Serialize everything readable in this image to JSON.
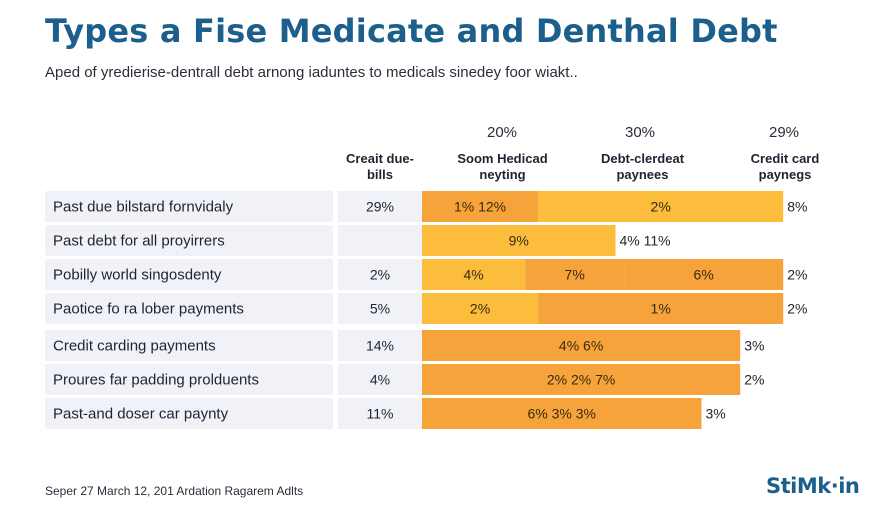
{
  "title": "Types a Fise Medicate and Denthal Debt",
  "subtitle": "Aped of yredierise-dentrall debt arnong iaduntes to medicals sinedey foor wiakt..",
  "footer": "Seper 27 March 12, 201 Ardation Ragarem Adlts",
  "brand": "StiMk·in",
  "colors": {
    "title": "#1c5f8d",
    "orange": "#f5a33a",
    "yellow": "#fbbd3b",
    "row_bg": "#f1f2f8"
  },
  "chart_data": {
    "type": "bar",
    "stacked": true,
    "orientation": "horizontal",
    "header_percents": [
      "20%",
      "30%",
      "29%"
    ],
    "columns": [
      "Creait due-\nbills",
      "Soom Hedicad\nneyting",
      "Debt-clerdeat\npaynees",
      "Credit card\npaynegs"
    ],
    "xlim": [
      0,
      100
    ],
    "rows": [
      {
        "label": "Past due bilstard fornvidaly",
        "first": "29%",
        "segments": [
          {
            "value": 27,
            "label": "1%  12%",
            "color": "orange"
          },
          {
            "value": 57,
            "label": "2%",
            "color": "yellow"
          }
        ],
        "end": "8%"
      },
      {
        "label": "Past debt for all proyirrers",
        "first": "",
        "segments": [
          {
            "value": 45,
            "label": "9%",
            "color": "yellow"
          }
        ],
        "end": "4% 11%"
      },
      {
        "label": "Pobilly world singosdenty",
        "first": "2%",
        "segments": [
          {
            "value": 24,
            "label": "4%",
            "color": "yellow"
          },
          {
            "value": 23,
            "label": "7%",
            "color": "orange"
          },
          {
            "value": 37,
            "label": "6%",
            "color": "orange"
          }
        ],
        "end": "2%"
      },
      {
        "label": "Paotice fo ra lober payments",
        "first": "5%",
        "segments": [
          {
            "value": 27,
            "label": "2%",
            "color": "yellow"
          },
          {
            "value": 57,
            "label": "1%",
            "color": "orange"
          }
        ],
        "end": "2%"
      },
      {
        "label": "Credit carding payments",
        "first": "14%",
        "segments": [
          {
            "value": 74,
            "label": "4%  6%",
            "color": "orange"
          }
        ],
        "end": "3%"
      },
      {
        "label": "Proures far padding prolduents",
        "first": "4%",
        "segments": [
          {
            "value": 74,
            "label": "2%  2%  7%",
            "color": "orange"
          }
        ],
        "end": "2%"
      },
      {
        "label": "Past-and doser car paynty",
        "first": "11%",
        "segments": [
          {
            "value": 65,
            "label": "6%  3%  3%",
            "color": "orange"
          }
        ],
        "end": "3%"
      }
    ]
  }
}
